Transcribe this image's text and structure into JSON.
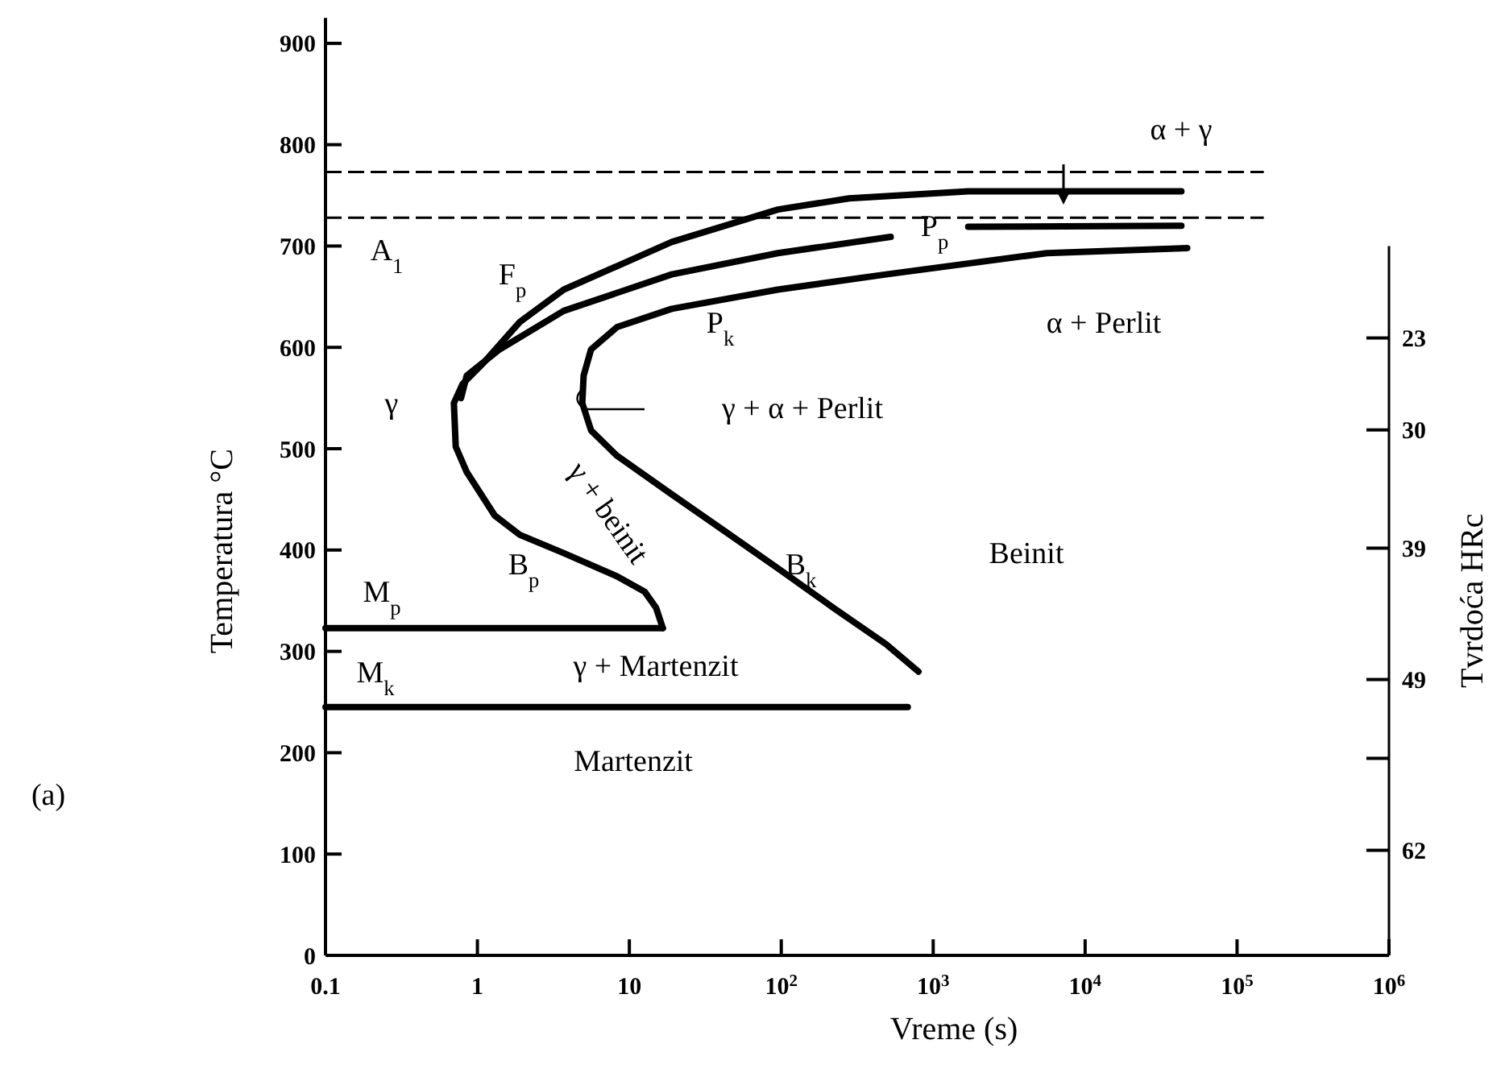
{
  "chart_data": {
    "type": "line",
    "xlabel": "Vreme (s)",
    "ylabel": "Temperatura °C",
    "y2label": "Tvrdoća HRc",
    "log": "x",
    "xlim": [
      0.1,
      1000000
    ],
    "xticks": [
      {
        "value": 0.1,
        "label": "0.1"
      },
      {
        "value": 1,
        "label": "1"
      },
      {
        "value": 10,
        "label": "10"
      },
      {
        "value": 100,
        "label": "10$^{2}$"
      },
      {
        "value": 1000,
        "label": "10$^{3}$"
      },
      {
        "value": 10000,
        "label": "10$^{4}$"
      },
      {
        "value": 100000,
        "label": "10$^{5}$"
      },
      {
        "value": 1000000,
        "label": "10$^{6}$"
      }
    ],
    "ylim": [
      0,
      925
    ],
    "yticks": [
      0,
      100,
      200,
      300,
      400,
      500,
      600,
      700,
      800,
      900
    ],
    "y2lim": [
      70,
      16
    ],
    "y2ticks": [
      23,
      30,
      39,
      49,
      {
        "value": 55,
        "label": null
      },
      62
    ],
    "grid": false,
    "marker": "none",
    "line_style": "solid",
    "series": [
      {
        "color": "#000000",
        "x": [
          43000,
          1700,
          280,
          95,
          19,
          3.7,
          1.9,
          1.1,
          0.8,
          0.7,
          0.72,
          0.85,
          1.3,
          1.9,
          3.7,
          8.3,
          12.6,
          15,
          16.6
        ],
        "values": [
          754,
          754,
          747,
          736,
          704,
          657,
          625,
          585,
          564,
          545,
          502,
          477,
          434,
          415,
          397,
          374,
          359,
          343,
          323
        ]
      },
      {
        "color": "#000000",
        "x": [
          0.78,
          0.85,
          1.4,
          3.7,
          19,
          95,
          525,
          1000,
          1700,
          43000
        ],
        "values": [
          550,
          572,
          598,
          636,
          672,
          693,
          709,
          null,
          719,
          720
        ]
      },
      {
        "color": "#000000",
        "x": [
          47000,
          5600,
          490,
          95,
          19,
          8.3,
          5.6,
          5.0,
          4.9,
          5.6,
          8.3,
          19,
          43,
          95,
          220,
          490,
          800
        ],
        "values": [
          698,
          693,
          672,
          657,
          638,
          620,
          598,
          572,
          545,
          518,
          493,
          455,
          418,
          382,
          343,
          307,
          280
        ]
      },
      {
        "color": "#000000",
        "x": [
          0.1,
          16.6
        ],
        "values": [
          323,
          323
        ]
      },
      {
        "color": "#000000",
        "x": [
          0.1,
          680
        ],
        "values": [
          245,
          245
        ]
      },
      {
        "color": "#000000",
        "line_style": "dashed",
        "x": [
          0.1,
          150000
        ],
        "values": [
          773,
          773
        ]
      },
      {
        "color": "#000000",
        "line_style": "dashed",
        "x": [
          0.1,
          150000
        ],
        "values": [
          728,
          728
        ]
      }
    ],
    "annotations": [
      "F$_{p}$",
      "B$_{p}$",
      "α + γ",
      "A$_{1}$",
      "P$_{p}$",
      "P$_{k}$",
      "α + Perlit",
      "γ",
      "γ + α + Perlit",
      "γ + beinit",
      "B$_{k}$",
      "Beinit",
      "M$_{p}$",
      "M$_{k}$",
      "γ + Martenzit",
      "Martenzit",
      "(a)"
    ]
  }
}
